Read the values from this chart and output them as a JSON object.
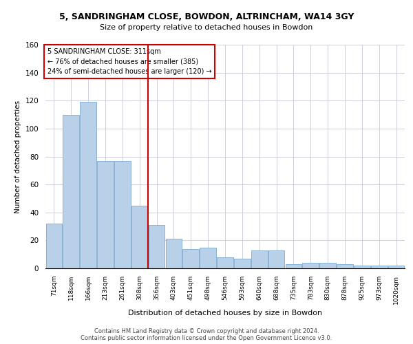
{
  "title1": "5, SANDRINGHAM CLOSE, BOWDON, ALTRINCHAM, WA14 3GY",
  "title2": "Size of property relative to detached houses in Bowdon",
  "xlabel": "Distribution of detached houses by size in Bowdon",
  "ylabel": "Number of detached properties",
  "footer1": "Contains HM Land Registry data © Crown copyright and database right 2024.",
  "footer2": "Contains public sector information licensed under the Open Government Licence v3.0.",
  "property_label": "5 SANDRINGHAM CLOSE: 311sqm",
  "annotation_line1": "← 76% of detached houses are smaller (385)",
  "annotation_line2": "24% of semi-detached houses are larger (120) →",
  "bar_color": "#b8d0e8",
  "bar_edge_color": "#6a9fc8",
  "vline_color": "#cc0000",
  "annotation_box_color": "#cc0000",
  "background_color": "#ffffff",
  "grid_color": "#c8c8d8",
  "categories": [
    "71sqm",
    "118sqm",
    "166sqm",
    "213sqm",
    "261sqm",
    "308sqm",
    "356sqm",
    "403sqm",
    "451sqm",
    "498sqm",
    "546sqm",
    "593sqm",
    "640sqm",
    "688sqm",
    "735sqm",
    "783sqm",
    "830sqm",
    "878sqm",
    "925sqm",
    "973sqm",
    "1020sqm"
  ],
  "values": [
    32,
    110,
    119,
    77,
    77,
    45,
    31,
    21,
    14,
    15,
    8,
    7,
    13,
    13,
    3,
    4,
    4,
    3,
    2,
    2,
    2
  ],
  "ylim": [
    0,
    160
  ],
  "yticks": [
    0,
    20,
    40,
    60,
    80,
    100,
    120,
    140,
    160
  ],
  "vline_index": 5
}
